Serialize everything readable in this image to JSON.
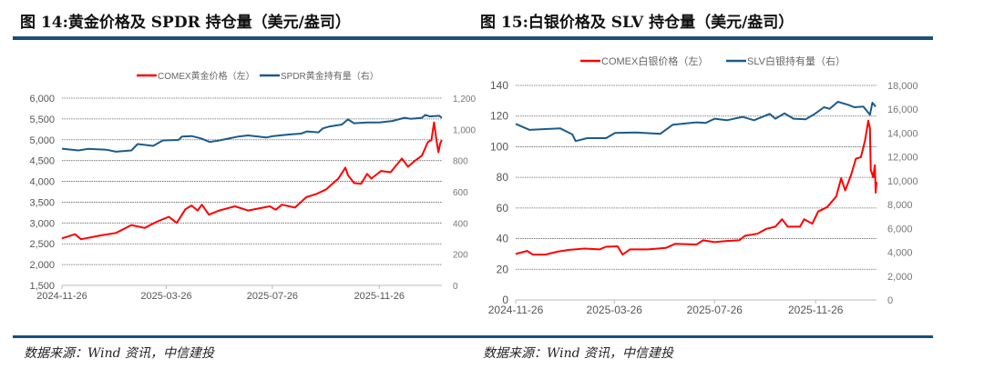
{
  "colors": {
    "accent": "#1a4f7a",
    "red": "#ff0000",
    "blue": "#1b5b8a",
    "grid": "#555555"
  },
  "chart_data": [
    {
      "type": "line",
      "title": "图 14:黄金价格及 SPDR 持仓量（美元/盎司）",
      "source": "数据来源：Wind 资讯，中信建投",
      "x_unit": "days since 2024-11-26",
      "xlim": [
        0,
        437
      ],
      "xticks": [
        {
          "label": "2024-11-26",
          "day": 0
        },
        {
          "label": "2025-03-26",
          "day": 120
        },
        {
          "label": "2025-07-26",
          "day": 242
        },
        {
          "label": "2025-11-26",
          "day": 365
        }
      ],
      "ylim_left": [
        1500,
        6000
      ],
      "yticks_left": [
        "1,500",
        "2,000",
        "2,500",
        "3,000",
        "3,500",
        "4,000",
        "4,500",
        "5,000",
        "5,500",
        "6,000"
      ],
      "ylim_right": [
        0,
        1200
      ],
      "yticks_right": [
        "0",
        "200",
        "400",
        "600",
        "800",
        "1,000",
        "1,200"
      ],
      "grid": true,
      "legend_position": "top-center",
      "series": [
        {
          "name": "COMEX黄金价格（左）",
          "axis": "left",
          "color": "#ff0000",
          "points": [
            [
              0,
              2630
            ],
            [
              15,
              2730
            ],
            [
              22,
              2610
            ],
            [
              44,
              2700
            ],
            [
              62,
              2760
            ],
            [
              80,
              2950
            ],
            [
              95,
              2880
            ],
            [
              109,
              3030
            ],
            [
              123,
              3150
            ],
            [
              132,
              3000
            ],
            [
              142,
              3330
            ],
            [
              149,
              3420
            ],
            [
              156,
              3300
            ],
            [
              161,
              3440
            ],
            [
              169,
              3200
            ],
            [
              181,
              3300
            ],
            [
              199,
              3400
            ],
            [
              214,
              3300
            ],
            [
              239,
              3400
            ],
            [
              246,
              3320
            ],
            [
              253,
              3440
            ],
            [
              268,
              3370
            ],
            [
              281,
              3620
            ],
            [
              293,
              3700
            ],
            [
              304,
              3810
            ],
            [
              318,
              4070
            ],
            [
              326,
              4330
            ],
            [
              329,
              4150
            ],
            [
              336,
              3960
            ],
            [
              344,
              3940
            ],
            [
              351,
              4180
            ],
            [
              356,
              4070
            ],
            [
              367,
              4250
            ],
            [
              378,
              4220
            ],
            [
              391,
              4550
            ],
            [
              398,
              4350
            ],
            [
              405,
              4480
            ],
            [
              414,
              4620
            ],
            [
              421,
              4950
            ],
            [
              425,
              4990
            ],
            [
              428,
              5420
            ],
            [
              431,
              4950
            ],
            [
              433,
              4700
            ],
            [
              435,
              4910
            ],
            [
              437,
              4990
            ]
          ]
        },
        {
          "name": "SPDR黄金持有量（右）",
          "axis": "right",
          "color": "#1b5b8a",
          "points": [
            [
              0,
              876
            ],
            [
              19,
              865
            ],
            [
              30,
              875
            ],
            [
              51,
              870
            ],
            [
              62,
              857
            ],
            [
              80,
              865
            ],
            [
              87,
              906
            ],
            [
              105,
              894
            ],
            [
              116,
              929
            ],
            [
              134,
              932
            ],
            [
              138,
              954
            ],
            [
              149,
              957
            ],
            [
              160,
              942
            ],
            [
              170,
              919
            ],
            [
              181,
              929
            ],
            [
              203,
              954
            ],
            [
              214,
              961
            ],
            [
              235,
              948
            ],
            [
              243,
              957
            ],
            [
              261,
              967
            ],
            [
              275,
              973
            ],
            [
              282,
              987
            ],
            [
              295,
              981
            ],
            [
              300,
              1006
            ],
            [
              308,
              1019
            ],
            [
              322,
              1031
            ],
            [
              329,
              1064
            ],
            [
              336,
              1039
            ],
            [
              351,
              1044
            ],
            [
              365,
              1044
            ],
            [
              380,
              1054
            ],
            [
              394,
              1074
            ],
            [
              401,
              1068
            ],
            [
              414,
              1074
            ],
            [
              418,
              1093
            ],
            [
              423,
              1083
            ],
            [
              434,
              1087
            ],
            [
              437,
              1074
            ]
          ]
        }
      ]
    },
    {
      "type": "line",
      "title": "图 15:白银价格及 SLV 持仓量（美元/盎司）",
      "source": "数据来源：Wind 资讯，中信建投",
      "x_unit": "days since 2024-11-26",
      "xlim": [
        0,
        439
      ],
      "xticks": [
        {
          "label": "2024-11-26",
          "day": 0
        },
        {
          "label": "2025-03-26",
          "day": 120
        },
        {
          "label": "2025-07-26",
          "day": 242
        },
        {
          "label": "2025-11-26",
          "day": 365
        }
      ],
      "ylim_left": [
        0,
        140
      ],
      "yticks_left": [
        "0",
        "20",
        "40",
        "60",
        "80",
        "100",
        "120",
        "140"
      ],
      "ylim_right": [
        0,
        18000
      ],
      "yticks_right": [
        "0",
        "2,000",
        "4,000",
        "6,000",
        "8,000",
        "10,000",
        "12,000",
        "14,000",
        "16,000",
        "18,000"
      ],
      "grid": true,
      "legend_position": "top-center",
      "series": [
        {
          "name": "COMEX白银价格（左）",
          "axis": "left",
          "color": "#ff0000",
          "points": [
            [
              0,
              30
            ],
            [
              14,
              32
            ],
            [
              21,
              29.6
            ],
            [
              36,
              29.6
            ],
            [
              51,
              31.5
            ],
            [
              65,
              32.7
            ],
            [
              84,
              33.5
            ],
            [
              102,
              33
            ],
            [
              110,
              34.7
            ],
            [
              124,
              35
            ],
            [
              130,
              29.6
            ],
            [
              139,
              33
            ],
            [
              161,
              33
            ],
            [
              183,
              34
            ],
            [
              194,
              36.6
            ],
            [
              220,
              36.2
            ],
            [
              228,
              38.9
            ],
            [
              242,
              37.7
            ],
            [
              257,
              38.5
            ],
            [
              272,
              38.9
            ],
            [
              279,
              41.9
            ],
            [
              294,
              43.2
            ],
            [
              305,
              46.4
            ],
            [
              316,
              47.8
            ],
            [
              324,
              52.7
            ],
            [
              331,
              47.8
            ],
            [
              346,
              47.8
            ],
            [
              351,
              52.7
            ],
            [
              361,
              49.8
            ],
            [
              368,
              57.7
            ],
            [
              379,
              60.6
            ],
            [
              390,
              67.5
            ],
            [
              396,
              79.4
            ],
            [
              401,
              71.5
            ],
            [
              408,
              81.4
            ],
            [
              414,
              92.2
            ],
            [
              420,
              93.2
            ],
            [
              425,
              104
            ],
            [
              429,
              117
            ],
            [
              431,
              112
            ],
            [
              432,
              85
            ],
            [
              435,
              80
            ],
            [
              437,
              88
            ],
            [
              438,
              70
            ],
            [
              439,
              77
            ]
          ]
        },
        {
          "name": "SLV白银持有量（右）",
          "axis": "right",
          "color": "#1b5b8a",
          "points": [
            [
              0,
              14776
            ],
            [
              17,
              14270
            ],
            [
              36,
              14340
            ],
            [
              54,
              14400
            ],
            [
              69,
              13890
            ],
            [
              73,
              13330
            ],
            [
              87,
              13580
            ],
            [
              110,
              13580
            ],
            [
              121,
              14010
            ],
            [
              146,
              14060
            ],
            [
              176,
              13940
            ],
            [
              191,
              14700
            ],
            [
              220,
              14900
            ],
            [
              231,
              14850
            ],
            [
              242,
              15210
            ],
            [
              257,
              15080
            ],
            [
              276,
              15360
            ],
            [
              290,
              15080
            ],
            [
              309,
              15610
            ],
            [
              316,
              15210
            ],
            [
              327,
              15660
            ],
            [
              338,
              15210
            ],
            [
              353,
              15160
            ],
            [
              364,
              15610
            ],
            [
              375,
              16170
            ],
            [
              382,
              16040
            ],
            [
              392,
              16630
            ],
            [
              405,
              16370
            ],
            [
              412,
              16170
            ],
            [
              423,
              16220
            ],
            [
              431,
              15540
            ],
            [
              434,
              16550
            ],
            [
              438,
              16220
            ]
          ]
        }
      ]
    }
  ]
}
